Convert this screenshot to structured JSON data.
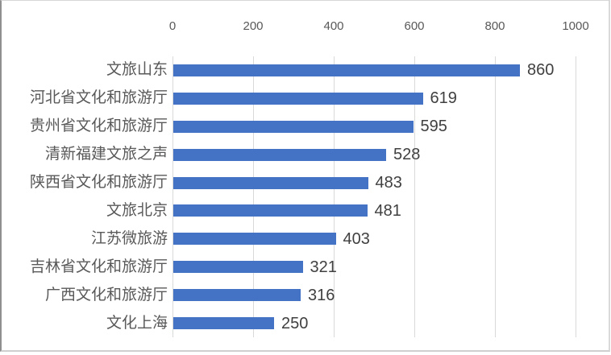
{
  "chart_data": {
    "type": "bar",
    "orientation": "horizontal",
    "title": "",
    "categories": [
      "文旅山东",
      "河北省文化和旅游厅",
      "贵州省文化和旅游厅",
      "清新福建文旅之声",
      "陕西省文化和旅游厅",
      "文旅北京",
      "江苏微旅游",
      "吉林省文化和旅游厅",
      "广西文化和旅游厅",
      "文化上海"
    ],
    "values": [
      860,
      619,
      595,
      528,
      483,
      481,
      403,
      321,
      316,
      250
    ],
    "data_labels": [
      "860",
      "619",
      "595",
      "528",
      "483",
      "481",
      "403",
      "321",
      "316",
      "250"
    ],
    "xlim": [
      0,
      1000
    ],
    "x_ticks": [
      "0",
      "200",
      "400",
      "600",
      "800",
      "1000"
    ],
    "x_tick_values": [
      0,
      200,
      400,
      600,
      800,
      1000
    ],
    "axis_labels_position": "top",
    "grid": true,
    "legend": false,
    "colors": {
      "bar": "#4472C4",
      "gridline": "#D9D9D9",
      "tick_label_text": "#595959",
      "category_label_text": "#595959",
      "value_label_text": "#404040",
      "background": "#FFFFFF",
      "frame_border": "#A9A9A9"
    }
  }
}
